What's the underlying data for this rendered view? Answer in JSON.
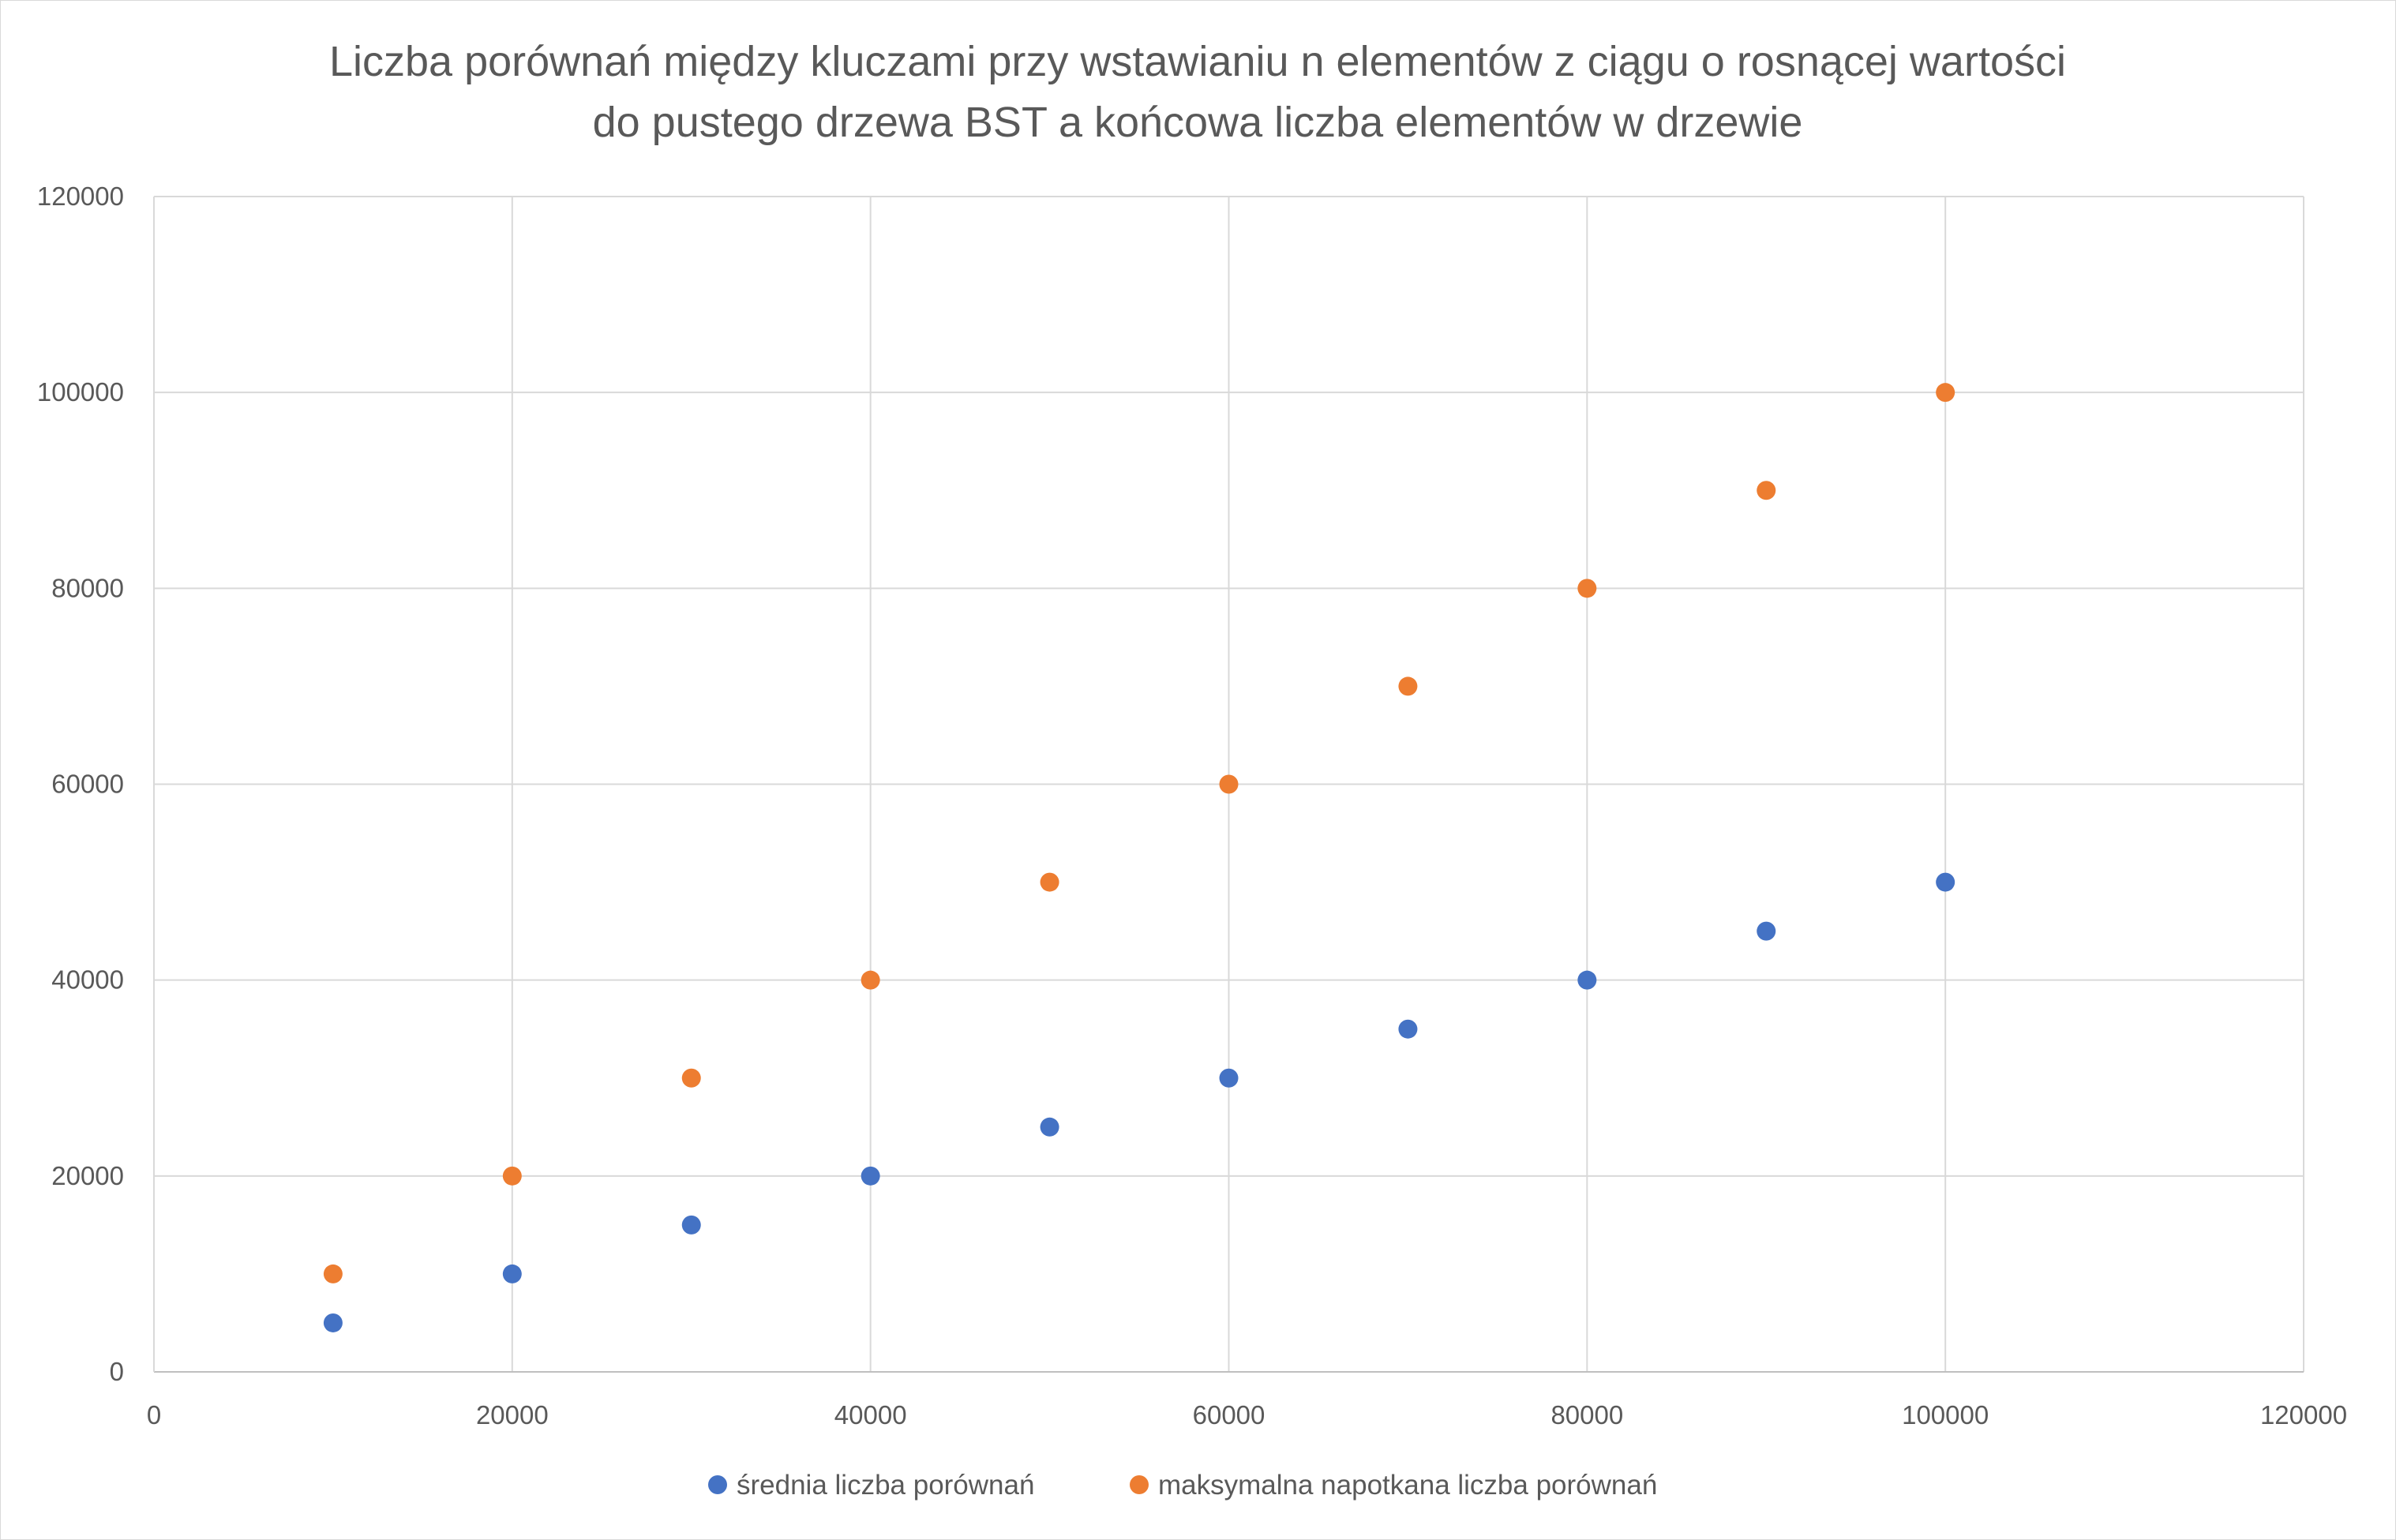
{
  "chart_data": {
    "type": "scatter",
    "title_lines": [
      "Liczba porównań między kluczami przy wstawianiu n elementów z ciągu o rosnącej wartości",
      "do pustego drzewa BST a końcowa liczba elementów w drzewie"
    ],
    "xlabel": "",
    "ylabel": "",
    "xlim": [
      0,
      120000
    ],
    "ylim": [
      0,
      120000
    ],
    "x_ticks": [
      "0",
      "20000",
      "40000",
      "60000",
      "80000",
      "100000",
      "120000"
    ],
    "y_ticks": [
      "0",
      "20000",
      "40000",
      "60000",
      "80000",
      "100000",
      "120000"
    ],
    "grid": true,
    "legend_position": "bottom",
    "series": [
      {
        "name": "średnia liczba porównań",
        "color": "#4472C4",
        "points": [
          {
            "x": 10000,
            "y": 5000
          },
          {
            "x": 20000,
            "y": 10000
          },
          {
            "x": 30000,
            "y": 15000
          },
          {
            "x": 40000,
            "y": 20000
          },
          {
            "x": 50000,
            "y": 25000
          },
          {
            "x": 60000,
            "y": 30000
          },
          {
            "x": 70000,
            "y": 35000
          },
          {
            "x": 80000,
            "y": 40000
          },
          {
            "x": 90000,
            "y": 45000
          },
          {
            "x": 100000,
            "y": 50000
          }
        ]
      },
      {
        "name": "maksymalna napotkana liczba porównań",
        "color": "#ED7D31",
        "points": [
          {
            "x": 10000,
            "y": 10000
          },
          {
            "x": 20000,
            "y": 20000
          },
          {
            "x": 30000,
            "y": 30000
          },
          {
            "x": 40000,
            "y": 40000
          },
          {
            "x": 50000,
            "y": 50000
          },
          {
            "x": 60000,
            "y": 60000
          },
          {
            "x": 70000,
            "y": 70000
          },
          {
            "x": 80000,
            "y": 80000
          },
          {
            "x": 90000,
            "y": 90000
          },
          {
            "x": 100000,
            "y": 100000
          }
        ]
      }
    ]
  }
}
